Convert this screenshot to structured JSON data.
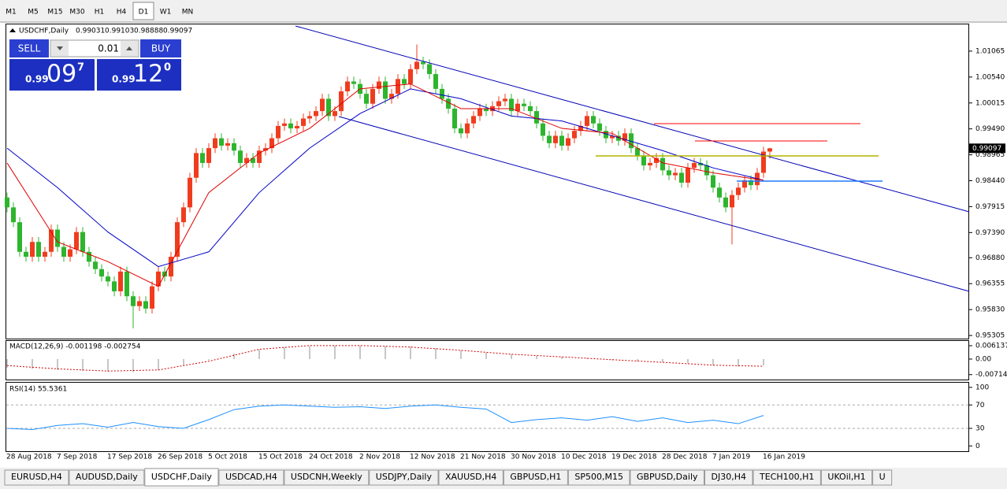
{
  "toolbar": {
    "timeframes": [
      {
        "label": "M1"
      },
      {
        "label": "M5"
      },
      {
        "label": "M15"
      },
      {
        "label": "M30"
      },
      {
        "label": "H1"
      },
      {
        "label": "H4"
      },
      {
        "label": "D1",
        "active": true
      },
      {
        "label": "W1"
      },
      {
        "label": "MN"
      }
    ]
  },
  "trade_panel": {
    "sell": "SELL",
    "buy": "BUY",
    "lot": "0.01",
    "bid": {
      "big": "0.99",
      "mid": "09",
      "sup": "7"
    },
    "ask": {
      "big": "0.99",
      "mid": "12",
      "sup": "0"
    }
  },
  "chart_data": [
    {
      "type": "candlestick",
      "title": "USDCHF,Daily",
      "up_color": "#f03c1e",
      "down_color": "#2db52d",
      "categories": [
        "28 Aug 2018",
        null,
        null,
        null,
        null,
        null,
        null,
        null,
        "7 Sep 2018",
        null,
        null,
        null,
        null,
        null,
        null,
        null,
        "17 Sep 2018",
        null,
        null,
        null,
        null,
        null,
        null,
        null,
        "26 Sep 2018",
        null,
        null,
        null,
        null,
        null,
        null,
        null,
        "5 Oct 2018",
        null,
        null,
        null,
        null,
        null,
        null,
        null,
        "15 Oct 2018",
        null,
        null,
        null,
        null,
        null,
        null,
        null,
        "24 Oct 2018",
        null,
        null,
        null,
        null,
        null,
        null,
        null,
        "2 Nov 2018",
        null,
        null,
        null,
        null,
        null,
        null,
        null,
        "12 Nov 2018",
        null,
        null,
        null,
        null,
        null,
        null,
        null,
        "21 Nov 2018",
        null,
        null,
        null,
        null,
        null,
        null,
        null,
        "30 Nov 2018",
        null,
        null,
        null,
        null,
        null,
        null,
        null,
        "10 Dec 2018",
        null,
        null,
        null,
        null,
        null,
        null,
        null,
        "19 Dec 2018",
        null,
        null,
        null,
        null,
        null,
        null,
        null,
        "28 Dec 2018",
        null,
        null,
        null,
        null,
        null,
        null,
        null,
        "7 Jan 2019",
        null,
        null,
        null,
        null,
        null,
        null,
        null,
        "16 Jan 2019",
        null
      ],
      "open": [
        0.981,
        0.979,
        0.976,
        0.97,
        0.969,
        0.972,
        0.969,
        0.97,
        0.9745,
        0.971,
        0.969,
        0.9705,
        0.974,
        0.97,
        0.968,
        0.9665,
        0.965,
        0.964,
        0.962,
        0.966,
        0.961,
        0.959,
        0.96,
        0.9585,
        0.963,
        0.966,
        0.965,
        0.969,
        0.976,
        0.979,
        0.985,
        0.99,
        0.988,
        0.991,
        0.993,
        0.9915,
        0.992,
        0.9905,
        0.988,
        0.989,
        0.988,
        0.9905,
        0.991,
        0.993,
        0.9955,
        0.996,
        0.995,
        0.9955,
        0.997,
        0.9975,
        0.9985,
        1.001,
        0.9975,
        0.9985,
        1.0025,
        1.0045,
        1.004,
        1.002,
        1.0,
        1.003,
        1.0045,
        1.001,
        1.002,
        1.005,
        1.004,
        1.007,
        1.0085,
        1.008,
        1.006,
        1.003,
        1.001,
        0.999,
        0.995,
        0.994,
        0.996,
        0.9975,
        0.999,
        0.9985,
        0.9995,
        1.0005,
        1.001,
        0.9985,
        1.0,
        0.9995,
        0.9985,
        0.996,
        0.9935,
        0.992,
        0.9935,
        0.9915,
        0.993,
        0.9945,
        0.9955,
        0.9975,
        0.996,
        0.9945,
        0.993,
        0.9935,
        0.9925,
        0.994,
        0.991,
        0.9895,
        0.9875,
        0.988,
        0.989,
        0.9865,
        0.9855,
        0.986,
        0.984,
        0.987,
        0.988,
        0.9875,
        0.9855,
        0.983,
        0.981,
        0.979,
        0.9815,
        0.983,
        0.9845,
        0.9835,
        0.986,
        0.99031
      ],
      "high": [
        0.982,
        0.98,
        0.977,
        0.971,
        0.973,
        0.973,
        0.971,
        0.9755,
        0.9755,
        0.972,
        0.9715,
        0.975,
        0.975,
        0.971,
        0.969,
        0.9675,
        0.966,
        0.965,
        0.967,
        0.967,
        0.962,
        0.961,
        0.961,
        0.964,
        0.967,
        0.967,
        0.97,
        0.977,
        0.98,
        0.986,
        0.991,
        0.991,
        0.992,
        0.994,
        0.994,
        0.993,
        0.993,
        0.9915,
        0.99,
        0.99,
        0.9915,
        0.992,
        0.994,
        0.9965,
        0.997,
        0.997,
        0.9965,
        0.998,
        0.9985,
        0.9995,
        1.002,
        1.002,
        0.9995,
        1.0035,
        1.0055,
        1.0055,
        1.005,
        1.003,
        1.004,
        1.0055,
        1.0055,
        1.003,
        1.006,
        1.006,
        1.008,
        1.012,
        1.0095,
        1.009,
        1.007,
        1.004,
        1.002,
        1.0,
        0.996,
        0.997,
        0.9985,
        1.0,
        1.0,
        1.0005,
        1.0015,
        1.002,
        1.002,
        1.001,
        1.001,
        1.0005,
        0.9995,
        0.997,
        0.9945,
        0.9945,
        0.9945,
        0.994,
        0.9955,
        0.9965,
        0.9985,
        0.9985,
        0.997,
        0.9955,
        0.9945,
        0.9945,
        0.995,
        0.995,
        0.992,
        0.9905,
        0.989,
        0.99,
        0.99,
        0.9875,
        0.987,
        0.987,
        0.988,
        0.989,
        0.989,
        0.9885,
        0.9865,
        0.984,
        0.982,
        0.9825,
        0.984,
        0.9855,
        0.9855,
        0.987,
        0.9913,
        0.99103
      ],
      "low": [
        0.978,
        0.975,
        0.969,
        0.968,
        0.968,
        0.968,
        0.968,
        0.969,
        0.97,
        0.968,
        0.968,
        0.9695,
        0.969,
        0.967,
        0.9655,
        0.964,
        0.963,
        0.961,
        0.961,
        0.96,
        0.9545,
        0.958,
        0.9575,
        0.9575,
        0.962,
        0.964,
        0.964,
        0.968,
        0.975,
        0.978,
        0.984,
        0.987,
        0.987,
        0.99,
        0.9905,
        0.9905,
        0.9895,
        0.987,
        0.987,
        0.987,
        0.987,
        0.9895,
        0.99,
        0.992,
        0.9945,
        0.994,
        0.994,
        0.9945,
        0.996,
        0.9965,
        0.9975,
        0.9965,
        0.9965,
        0.9975,
        1.0015,
        1.003,
        1.001,
        0.999,
        0.999,
        1.002,
        1.0,
        1.0,
        1.001,
        1.003,
        1.003,
        1.006,
        1.007,
        1.005,
        1.002,
        1.0,
        0.998,
        0.994,
        0.993,
        0.993,
        0.995,
        0.9965,
        0.9975,
        0.9975,
        0.9985,
        0.9995,
        0.9975,
        0.9975,
        0.9985,
        0.9975,
        0.995,
        0.9925,
        0.991,
        0.991,
        0.9905,
        0.9905,
        0.992,
        0.9935,
        0.9945,
        0.995,
        0.9935,
        0.992,
        0.992,
        0.9915,
        0.9915,
        0.99,
        0.9885,
        0.9865,
        0.9865,
        0.987,
        0.9855,
        0.9845,
        0.9845,
        0.983,
        0.983,
        0.986,
        0.9865,
        0.9845,
        0.982,
        0.98,
        0.978,
        0.9715,
        0.9805,
        0.982,
        0.9825,
        0.9825,
        0.985,
        0.98888
      ],
      "close": [
        0.979,
        0.976,
        0.97,
        0.969,
        0.972,
        0.969,
        0.97,
        0.9745,
        0.971,
        0.969,
        0.9705,
        0.974,
        0.97,
        0.968,
        0.9665,
        0.965,
        0.964,
        0.962,
        0.966,
        0.961,
        0.959,
        0.96,
        0.9585,
        0.963,
        0.966,
        0.965,
        0.969,
        0.976,
        0.979,
        0.985,
        0.99,
        0.988,
        0.991,
        0.993,
        0.9915,
        0.992,
        0.9905,
        0.988,
        0.989,
        0.988,
        0.9905,
        0.991,
        0.993,
        0.9955,
        0.996,
        0.995,
        0.9955,
        0.997,
        0.9975,
        0.9985,
        1.001,
        0.9975,
        0.9985,
        1.0025,
        1.0045,
        1.004,
        1.002,
        1.0,
        1.003,
        1.0045,
        1.001,
        1.002,
        1.005,
        1.004,
        1.007,
        1.0085,
        1.008,
        1.006,
        1.003,
        1.001,
        0.999,
        0.995,
        0.994,
        0.996,
        0.9975,
        0.999,
        0.9985,
        0.9995,
        1.0005,
        1.001,
        0.9985,
        1.0,
        0.9995,
        0.9985,
        0.996,
        0.9935,
        0.992,
        0.9935,
        0.9915,
        0.993,
        0.9945,
        0.9955,
        0.9975,
        0.996,
        0.9945,
        0.993,
        0.9935,
        0.9925,
        0.994,
        0.991,
        0.9895,
        0.9875,
        0.988,
        0.989,
        0.9865,
        0.9855,
        0.986,
        0.984,
        0.987,
        0.988,
        0.9875,
        0.9855,
        0.983,
        0.981,
        0.979,
        0.9815,
        0.983,
        0.9845,
        0.9835,
        0.986,
        0.9903,
        0.99097
      ],
      "overlays": [
        {
          "color": "#0000c8",
          "x": [
            0,
            8,
            16,
            24,
            32,
            40,
            48,
            56,
            64,
            72,
            80,
            88,
            96,
            104,
            112,
            120
          ],
          "values": [
            0.991,
            0.983,
            0.974,
            0.967,
            0.97,
            0.982,
            0.991,
            0.998,
            1.003,
            1.001,
            0.9975,
            0.9965,
            0.9935,
            0.9905,
            0.987,
            0.9845
          ]
        },
        {
          "color": "#e00000",
          "x": [
            0,
            8,
            16,
            24,
            32,
            40,
            48,
            56,
            64,
            72,
            80,
            88,
            96,
            104,
            112,
            120
          ],
          "values": [
            0.988,
            0.972,
            0.968,
            0.963,
            0.982,
            0.99,
            0.995,
            1.003,
            1.004,
            0.999,
            0.999,
            0.995,
            0.994,
            0.988,
            0.986,
            0.9845
          ]
        }
      ],
      "ylim": [
        0.95242,
        1.01606
      ],
      "yticks": [
        1.01065,
        {
          "value": 1.0054,
          "label": "1.00540"
        },
        1.00015,
        {
          "value": 0.9949,
          "label": "0.99490"
        },
        0.98965,
        {
          "value": 0.9844,
          "label": "0.98440"
        },
        0.97915,
        {
          "value": 0.9739,
          "label": "0.97390"
        },
        {
          "value": 0.9688,
          "label": "0.96880"
        },
        0.96355,
        {
          "value": 0.9583,
          "label": "0.95830"
        },
        0.95305
      ]
    },
    {
      "type": "macd",
      "title": "MACD(12,26,9) -0.001198 -0.002754",
      "bar_color": "#b4b4b4",
      "signal_color": "#d00000",
      "x": [
        0,
        4,
        8,
        12,
        16,
        20,
        24,
        28,
        32,
        36,
        40,
        44,
        48,
        52,
        56,
        60,
        64,
        68,
        72,
        76,
        80,
        84,
        88,
        92,
        96,
        100,
        104,
        108,
        112,
        116,
        120
      ],
      "values": [
        -0.004,
        -0.0045,
        -0.005,
        -0.0055,
        -0.0058,
        -0.006,
        -0.005,
        -0.003,
        -0.0005,
        0.0025,
        0.0045,
        0.0055,
        0.006,
        0.0062,
        0.0062,
        0.006,
        0.0058,
        0.005,
        0.004,
        0.003,
        0.0022,
        0.0015,
        0.001,
        0.0005,
        -0.0005,
        -0.001,
        -0.0015,
        -0.002,
        -0.003,
        -0.0035,
        -0.003
      ],
      "signal_x": [
        0,
        8,
        16,
        24,
        32,
        40,
        48,
        56,
        64,
        72,
        80,
        88,
        96,
        104,
        112,
        120
      ],
      "signal": [
        -0.003,
        -0.0045,
        -0.0055,
        -0.005,
        -0.001,
        0.0045,
        0.0062,
        0.0062,
        0.0055,
        0.004,
        0.0022,
        0.001,
        -0.0003,
        -0.0015,
        -0.0028,
        -0.0033
      ],
      "ylim": [
        -0.0094,
        0.0083
      ],
      "yticks": [
        0.006137,
        {
          "value": 0,
          "label": "0.00"
        },
        -0.007142
      ]
    },
    {
      "type": "line",
      "title": "RSI(14) 55.5361",
      "color": "#1e90ff",
      "x": [
        0,
        4,
        8,
        12,
        16,
        20,
        24,
        28,
        32,
        36,
        40,
        44,
        48,
        52,
        56,
        60,
        64,
        68,
        72,
        76,
        80,
        84,
        88,
        92,
        96,
        100,
        104,
        108,
        112,
        116,
        120
      ],
      "values": [
        30,
        28,
        35,
        38,
        32,
        40,
        33,
        30,
        45,
        62,
        68,
        70,
        68,
        66,
        67,
        64,
        68,
        70,
        66,
        63,
        40,
        45,
        48,
        44,
        50,
        42,
        48,
        40,
        44,
        38,
        52
      ],
      "levels": [
        70,
        30
      ],
      "ylim": [
        -9,
        108
      ],
      "yticks": [
        100,
        70,
        30,
        0
      ]
    }
  ],
  "tabs": [
    {
      "label": "EURUSD,H4"
    },
    {
      "label": "AUDUSD,Daily"
    },
    {
      "label": "USDCHF,Daily",
      "active": true
    },
    {
      "label": "USDCAD,H4"
    },
    {
      "label": "USDCNH,Weekly"
    },
    {
      "label": "USDJPY,Daily"
    },
    {
      "label": "XAUUSD,H4"
    },
    {
      "label": "GBPUSD,H1"
    },
    {
      "label": "SP500,M15"
    },
    {
      "label": "GBPUSD,Daily"
    },
    {
      "label": "DJ30,H4"
    },
    {
      "label": "TECH100,H1"
    },
    {
      "label": "UKOil,H1"
    },
    {
      "label": "U"
    }
  ]
}
